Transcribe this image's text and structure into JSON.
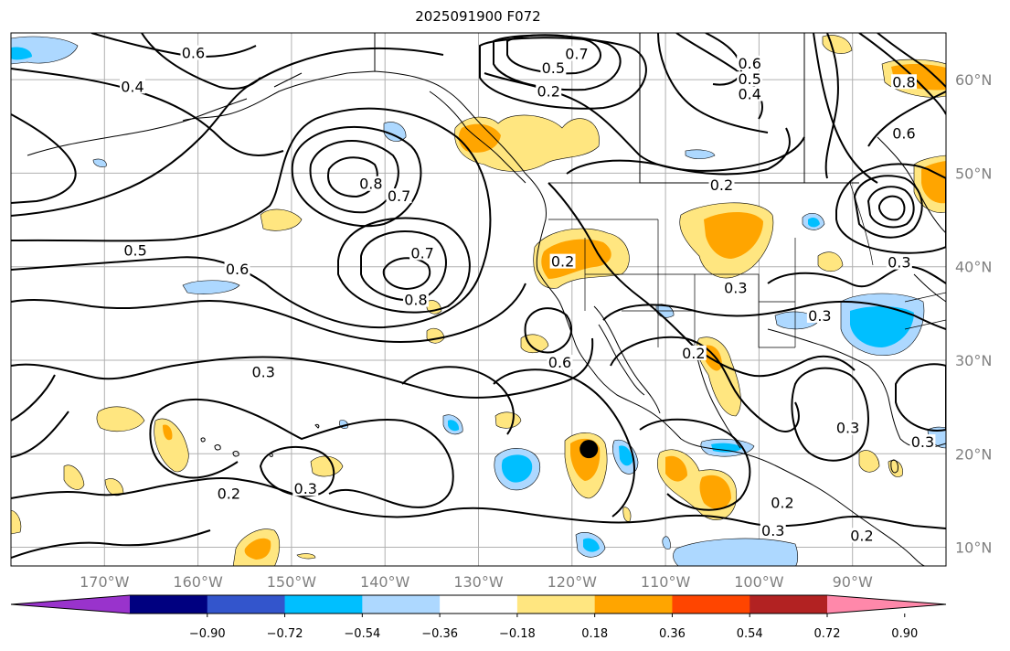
{
  "title": "2025091900 F072",
  "map": {
    "lon_range": [
      -180,
      -80
    ],
    "lat_range": [
      8,
      65
    ],
    "lon_ticks": [
      {
        "value": -170,
        "label": "170°W"
      },
      {
        "value": -160,
        "label": "160°W"
      },
      {
        "value": -150,
        "label": "150°W"
      },
      {
        "value": -140,
        "label": "140°W"
      },
      {
        "value": -130,
        "label": "130°W"
      },
      {
        "value": -120,
        "label": "120°W"
      },
      {
        "value": -110,
        "label": "110°W"
      },
      {
        "value": -100,
        "label": "100°W"
      },
      {
        "value": -90,
        "label": "90°W"
      }
    ],
    "lat_ticks": [
      {
        "value": 10,
        "label": "10°N"
      },
      {
        "value": 20,
        "label": "20°N"
      },
      {
        "value": 30,
        "label": "30°N"
      },
      {
        "value": 40,
        "label": "40°N"
      },
      {
        "value": 50,
        "label": "50°N"
      },
      {
        "value": 60,
        "label": "60°N"
      }
    ],
    "grid": true,
    "marker": {
      "lon": -118.2,
      "lat": 20.5,
      "color": "#000000"
    },
    "contour_labels": [
      {
        "text": "0.6",
        "lon": -160.5,
        "lat": 62.6
      },
      {
        "text": "0.4",
        "lon": -167,
        "lat": 59
      },
      {
        "text": "0.8",
        "lon": -141.5,
        "lat": 48.6
      },
      {
        "text": "0.7",
        "lon": -138.5,
        "lat": 47.3
      },
      {
        "text": "0.5",
        "lon": -166.7,
        "lat": 41.5
      },
      {
        "text": "0.6",
        "lon": -155.8,
        "lat": 39.5
      },
      {
        "text": "0.7",
        "lon": -136,
        "lat": 41.2
      },
      {
        "text": "0.8",
        "lon": -136.7,
        "lat": 36.2
      },
      {
        "text": "0.3",
        "lon": -153,
        "lat": 28.5
      },
      {
        "text": "0.2",
        "lon": -156.7,
        "lat": 15.5
      },
      {
        "text": "0.3",
        "lon": -148.5,
        "lat": 16
      },
      {
        "text": "0.2",
        "lon": -121,
        "lat": 40.3
      },
      {
        "text": "0.6",
        "lon": -121.3,
        "lat": 29.5
      },
      {
        "text": "0.2",
        "lon": -107,
        "lat": 30.5
      },
      {
        "text": "0.3",
        "lon": -102.5,
        "lat": 37.5
      },
      {
        "text": "0.2",
        "lon": -104,
        "lat": 48.5
      },
      {
        "text": "0.3",
        "lon": -93.5,
        "lat": 34.5
      },
      {
        "text": "0.3",
        "lon": -90.5,
        "lat": 22.5
      },
      {
        "text": "0.2",
        "lon": -97.5,
        "lat": 14.5
      },
      {
        "text": "0.3",
        "lon": -98.5,
        "lat": 11.5
      },
      {
        "text": "0.2",
        "lon": -89,
        "lat": 11
      },
      {
        "text": "0.6",
        "lon": -101,
        "lat": 61.5
      },
      {
        "text": "0.5",
        "lon": -101,
        "lat": 59.8
      },
      {
        "text": "0.4",
        "lon": -101,
        "lat": 58.2
      },
      {
        "text": "0.7",
        "lon": -119.5,
        "lat": 62.5
      },
      {
        "text": "0.5",
        "lon": -122,
        "lat": 61
      },
      {
        "text": "0.2",
        "lon": -122.5,
        "lat": 58.5
      },
      {
        "text": "0.8",
        "lon": -84.5,
        "lat": 59.5
      },
      {
        "text": "0.6",
        "lon": -84.5,
        "lat": 54
      },
      {
        "text": "0.3",
        "lon": -85,
        "lat": 40.2
      },
      {
        "text": "0.3",
        "lon": -82.5,
        "lat": 21
      }
    ]
  },
  "colorbar": {
    "colors": [
      "#9933cc",
      "#000080",
      "#3355cc",
      "#00bfff",
      "#add8ff",
      "#ffffff",
      "#ffe680",
      "#ffa500",
      "#ff4500",
      "#b22222",
      "#ff88aa"
    ],
    "labels": [
      "−0.90",
      "−0.72",
      "−0.54",
      "−0.36",
      "−0.18",
      "0.18",
      "0.36",
      "0.54",
      "0.72",
      "0.90"
    ]
  }
}
